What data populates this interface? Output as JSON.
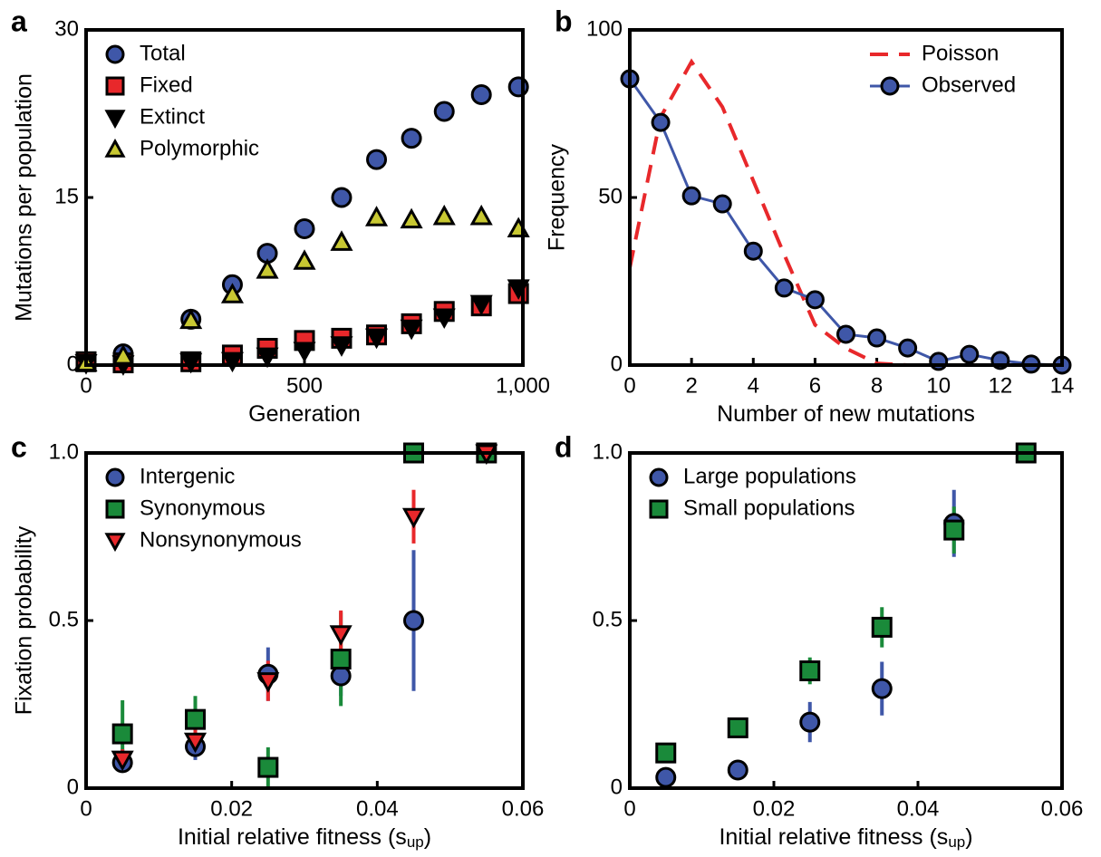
{
  "chart_data": [
    {
      "type": "scatter",
      "label": "a",
      "xlabel": "Generation",
      "ylabel": "Mutations per population",
      "xlim": [
        0,
        1000
      ],
      "xticks": [
        0,
        500,
        {
          "value": 1000,
          "label": "1,000"
        }
      ],
      "ylim": [
        0,
        30
      ],
      "yticks": [
        0,
        15,
        30
      ],
      "legend": "upper left",
      "x": [
        0,
        85,
        240,
        335,
        415,
        500,
        585,
        665,
        745,
        820,
        905,
        990
      ],
      "series": [
        {
          "name": "Total",
          "color": "#3f57a8",
          "marker": "circle",
          "values": [
            0.3,
            1.0,
            4.1,
            7.2,
            10.0,
            12.2,
            15.0,
            18.4,
            20.3,
            22.7,
            24.2,
            24.9
          ]
        },
        {
          "name": "Fixed",
          "color": "#e8282b",
          "marker": "square",
          "values": [
            0.3,
            0.2,
            0.3,
            0.9,
            1.5,
            2.2,
            2.4,
            2.7,
            3.7,
            4.8,
            5.3,
            6.4
          ]
        },
        {
          "name": "Extinct",
          "color": "#000000",
          "marker": "triangle-down",
          "values": [
            0.2,
            0.1,
            0.3,
            0.4,
            0.8,
            1.3,
            1.8,
            2.5,
            3.3,
            4.3,
            5.5,
            6.9
          ]
        },
        {
          "name": "Polymorphic",
          "color": "#c8c832",
          "marker": "triangle-up",
          "values": [
            0.2,
            0.8,
            4.0,
            6.3,
            8.5,
            9.3,
            11.0,
            13.2,
            13.0,
            13.3,
            13.3,
            12.2
          ]
        }
      ]
    },
    {
      "type": "line",
      "label": "b",
      "xlabel": "Number of new mutations",
      "ylabel": "Frequency",
      "xlim": [
        0,
        14
      ],
      "xticks": [
        0,
        2,
        4,
        6,
        8,
        10,
        12,
        14
      ],
      "ylim": [
        0,
        100
      ],
      "yticks": [
        0,
        50,
        100
      ],
      "legend": "upper right",
      "x": [
        0,
        1,
        2,
        3,
        4,
        5,
        6,
        7,
        8,
        9,
        10,
        11,
        12,
        13,
        14
      ],
      "series": [
        {
          "name": "Poisson",
          "color": "#e8282b",
          "linestyle": "dashed",
          "marker": null,
          "values": [
            29,
            74,
            90.5,
            77,
            55,
            33,
            12,
            5,
            0.5,
            0,
            null,
            null,
            null,
            null,
            null
          ]
        },
        {
          "name": "Observed",
          "color": "#3f57a8",
          "linestyle": "solid",
          "marker": "circle",
          "values": [
            85.4,
            72.4,
            50.5,
            48.1,
            34,
            23,
            19.5,
            9.2,
            8.1,
            5.1,
            1.1,
            3.2,
            1.4,
            0.3,
            0
          ]
        }
      ]
    },
    {
      "type": "scatter",
      "label": "c",
      "xlabel": "Initial relative fitness (s",
      "xlabel_sub": "up",
      "xlabel_end": ")",
      "ylabel": "Fixation probability",
      "xlim": [
        0,
        0.06
      ],
      "xticks": [
        0,
        0.02,
        0.04,
        0.06
      ],
      "ylim": [
        0,
        1
      ],
      "yticks": [
        0,
        0.5,
        {
          "value": 1,
          "label": "1.0"
        }
      ],
      "legend": "upper left",
      "x": [
        0.005,
        0.015,
        0.025,
        0.035,
        0.045,
        0.055
      ],
      "series": [
        {
          "name": "Intergenic",
          "color": "#3f57a8",
          "marker": "circle",
          "values": [
            0.076,
            0.124,
            0.34,
            0.335,
            0.5,
            null
          ],
          "errors": [
            0.03,
            0.04,
            0.08,
            0.06,
            0.21,
            null
          ]
        },
        {
          "name": "Synonymous",
          "color": "#1a8a3a",
          "marker": "square",
          "values": [
            0.162,
            0.205,
            0.062,
            0.385,
            1.0,
            1.0
          ],
          "errors": [
            0.1,
            0.07,
            0.06,
            0.14,
            0,
            0
          ]
        },
        {
          "name": "Nonsynonymous",
          "color": "#e8282b",
          "marker": "triangle-down",
          "values": [
            0.086,
            0.14,
            0.32,
            0.46,
            0.81,
            1.0
          ],
          "errors": [
            0.03,
            0.04,
            0.06,
            0.07,
            0.08,
            0
          ]
        }
      ]
    },
    {
      "type": "scatter",
      "label": "d",
      "xlabel": "Initial relative fitness (s",
      "xlabel_sub": "up",
      "xlabel_end": ")",
      "xlim": [
        0,
        0.06
      ],
      "xticks": [
        0,
        0.02,
        0.04,
        0.06
      ],
      "ylim": [
        0,
        1
      ],
      "yticks": [
        0,
        0.5,
        {
          "value": 1,
          "label": "1.0"
        }
      ],
      "legend": "upper left",
      "x": [
        0.005,
        0.015,
        0.025,
        0.035,
        0.045,
        0.055
      ],
      "series": [
        {
          "name": "Large populations",
          "color": "#3f57a8",
          "marker": "circle",
          "values": [
            0.032,
            0.054,
            0.197,
            0.297,
            0.79,
            null
          ],
          "errors": [
            0.01,
            0.01,
            0.06,
            0.08,
            0.1,
            null
          ]
        },
        {
          "name": "Small populations",
          "color": "#1a8a3a",
          "marker": "square",
          "values": [
            0.105,
            0.18,
            0.35,
            0.48,
            0.77,
            1.0
          ],
          "errors": [
            0.02,
            0.02,
            0.04,
            0.06,
            0.07,
            0
          ]
        }
      ]
    }
  ]
}
